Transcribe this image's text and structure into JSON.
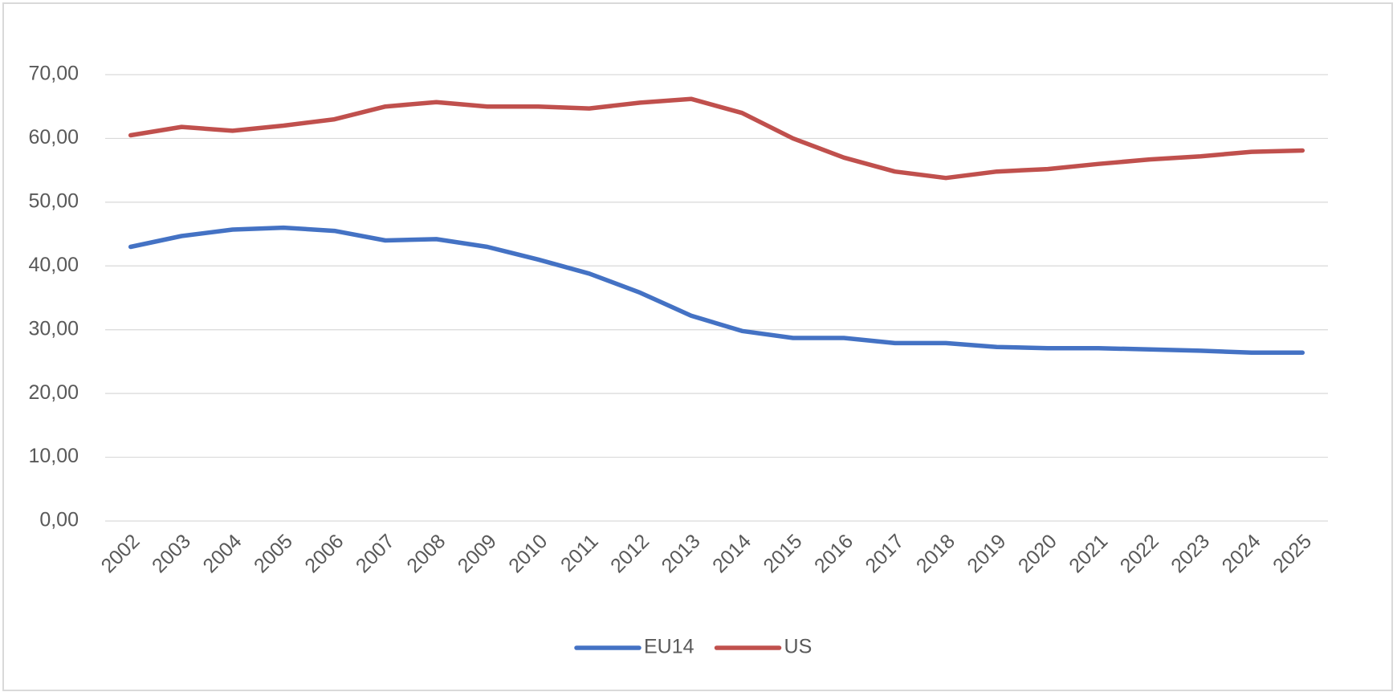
{
  "chart_data": {
    "type": "line",
    "categories": [
      "2002",
      "2003",
      "2004",
      "2005",
      "2006",
      "2007",
      "2008",
      "2009",
      "2010",
      "2011",
      "2012",
      "2013",
      "2014",
      "2015",
      "2016",
      "2017",
      "2018",
      "2019",
      "2020",
      "2021",
      "2022",
      "2023",
      "2024",
      "2025"
    ],
    "series": [
      {
        "name": "EU14",
        "color": "#4472c4",
        "values": [
          43.0,
          44.7,
          45.7,
          46.0,
          45.5,
          44.0,
          44.2,
          43.0,
          41.0,
          38.8,
          35.8,
          32.2,
          29.8,
          28.7,
          28.7,
          27.9,
          27.9,
          27.3,
          27.1,
          27.1,
          26.9,
          26.7,
          26.4,
          26.4
        ]
      },
      {
        "name": "US",
        "color": "#c0504d",
        "values": [
          60.5,
          61.8,
          61.2,
          62.0,
          63.0,
          65.0,
          65.7,
          65.0,
          65.0,
          64.7,
          65.6,
          66.2,
          64.0,
          60.0,
          57.0,
          54.8,
          53.8,
          54.8,
          55.2,
          56.0,
          56.7,
          57.2,
          57.9,
          58.1
        ]
      }
    ],
    "ylim": [
      0,
      70
    ],
    "yticks": [
      {
        "value": 0,
        "label": "0,00"
      },
      {
        "value": 10,
        "label": "10,00"
      },
      {
        "value": 20,
        "label": "20,00"
      },
      {
        "value": 30,
        "label": "30,00"
      },
      {
        "value": 40,
        "label": "40,00"
      },
      {
        "value": 50,
        "label": "50,00"
      },
      {
        "value": 60,
        "label": "60,00"
      },
      {
        "value": 70,
        "label": "70,00"
      }
    ],
    "grid": true,
    "legend": "bottom"
  }
}
